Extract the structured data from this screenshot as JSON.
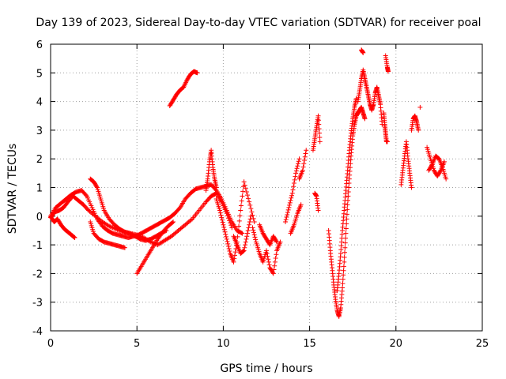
{
  "chart_data": {
    "type": "scatter",
    "title": "Day 139 of 2023, Sidereal Day-to-day VTEC variation (SDTVAR) for receiver poal",
    "xlabel": "GPS time / hours",
    "ylabel": "SDTVAR / TECUs",
    "xlim": [
      0,
      25
    ],
    "ylim": [
      -4,
      6
    ],
    "xticks": [
      0,
      5,
      10,
      15,
      20,
      25
    ],
    "yticks": [
      -4,
      -3,
      -2,
      -1,
      0,
      1,
      2,
      3,
      4,
      5,
      6
    ],
    "grid": true,
    "legend": "none",
    "marker": "+",
    "series": [
      {
        "name": "SDTVAR",
        "color": "#ff0000",
        "segments": [
          {
            "x": [
              0.0,
              0.3,
              0.6,
              0.9,
              1.2,
              1.5,
              1.8,
              2.1,
              2.4,
              2.7,
              3.0,
              3.3,
              3.6,
              3.9,
              4.2,
              4.5,
              4.8,
              5.1,
              5.4,
              5.7,
              6.0,
              6.3,
              6.6,
              6.9,
              7.2,
              7.5,
              7.8,
              8.1,
              8.4,
              8.7,
              9.0,
              9.3,
              9.6,
              9.9,
              10.2,
              10.5,
              10.8,
              11.1
            ],
            "y": [
              0.0,
              0.3,
              0.45,
              0.6,
              0.75,
              0.85,
              0.9,
              0.7,
              0.3,
              -0.1,
              -0.35,
              -0.5,
              -0.6,
              -0.65,
              -0.7,
              -0.75,
              -0.7,
              -0.65,
              -0.55,
              -0.45,
              -0.35,
              -0.25,
              -0.15,
              -0.05,
              0.1,
              0.3,
              0.6,
              0.8,
              0.95,
              1.0,
              1.05,
              1.1,
              0.9,
              0.6,
              0.2,
              -0.2,
              -0.5,
              -0.6
            ]
          },
          {
            "x": [
              0.0,
              0.25,
              0.5,
              0.75,
              1.0,
              1.3,
              1.6,
              1.9,
              2.2,
              2.6,
              3.0,
              3.4,
              3.8,
              4.2,
              4.6,
              5.0,
              5.4,
              5.8,
              6.2,
              6.6,
              7.0,
              7.4,
              7.8,
              8.2,
              8.6,
              9.0,
              9.3,
              9.6,
              9.9,
              10.2,
              10.5
            ],
            "y": [
              -0.05,
              0.15,
              0.2,
              0.3,
              0.5,
              0.7,
              0.55,
              0.4,
              0.2,
              0.0,
              -0.2,
              -0.35,
              -0.45,
              -0.55,
              -0.6,
              -0.65,
              -0.75,
              -0.9,
              -1.0,
              -0.85,
              -0.7,
              -0.5,
              -0.3,
              -0.1,
              0.2,
              0.5,
              0.7,
              0.8,
              0.5,
              0.1,
              -0.4
            ]
          },
          {
            "x": [
              0.0,
              0.2,
              0.4,
              0.6,
              0.8,
              1.0,
              1.2,
              1.4
            ],
            "y": [
              0.0,
              -0.2,
              -0.1,
              -0.3,
              -0.45,
              -0.55,
              -0.65,
              -0.75
            ]
          },
          {
            "x": [
              2.3,
              2.5,
              2.7,
              2.9,
              3.1,
              3.4,
              3.7,
              4.0,
              4.3,
              4.6,
              4.9,
              5.2,
              5.5,
              5.8,
              6.1,
              6.4,
              6.7
            ],
            "y": [
              1.3,
              1.2,
              1.0,
              0.6,
              0.2,
              -0.1,
              -0.3,
              -0.45,
              -0.55,
              -0.6,
              -0.7,
              -0.8,
              -0.85,
              -0.8,
              -0.7,
              -0.6,
              -0.5
            ]
          },
          {
            "x": [
              2.3,
              2.5,
              2.8,
              3.1,
              3.4,
              3.7,
              4.0,
              4.3
            ],
            "y": [
              -0.2,
              -0.6,
              -0.8,
              -0.9,
              -0.95,
              -1.0,
              -1.05,
              -1.1
            ]
          },
          {
            "x": [
              5.0,
              5.3,
              5.6,
              5.9,
              6.2,
              6.5,
              6.8,
              7.1
            ],
            "y": [
              -2.0,
              -1.7,
              -1.4,
              -1.1,
              -0.8,
              -0.55,
              -0.35,
              -0.2
            ]
          },
          {
            "x": [
              6.9,
              7.1,
              7.3,
              7.5,
              7.7,
              7.9,
              8.1,
              8.3,
              8.5
            ],
            "y": [
              3.85,
              4.05,
              4.25,
              4.4,
              4.5,
              4.75,
              4.95,
              5.05,
              5.0
            ]
          },
          {
            "x": [
              9.0,
              9.1,
              9.2,
              9.3,
              9.4,
              9.5,
              9.6
            ],
            "y": [
              0.9,
              1.3,
              1.9,
              2.3,
              1.7,
              1.3,
              1.0
            ]
          },
          {
            "x": [
              9.6,
              9.8,
              10.0,
              10.2,
              10.4,
              10.6,
              10.8,
              11.0,
              11.2,
              11.5,
              11.8
            ],
            "y": [
              0.6,
              0.2,
              -0.3,
              -0.8,
              -1.3,
              -1.6,
              -0.9,
              0.2,
              1.2,
              0.5,
              -0.2
            ]
          },
          {
            "x": [
              10.6,
              10.8,
              11.0,
              11.2,
              11.4,
              11.6
            ],
            "y": [
              -0.7,
              -1.0,
              -1.3,
              -1.2,
              -0.6,
              0.0
            ]
          },
          {
            "x": [
              11.7,
              11.9,
              12.1,
              12.3,
              12.5,
              12.7,
              12.9,
              13.1,
              13.3
            ],
            "y": [
              -0.4,
              -0.9,
              -1.3,
              -1.6,
              -1.2,
              -1.8,
              -2.0,
              -1.2,
              -0.9
            ]
          },
          {
            "x": [
              12.1,
              12.3,
              12.5,
              12.7,
              12.9,
              13.1
            ],
            "y": [
              -0.3,
              -0.6,
              -0.8,
              -1.0,
              -0.7,
              -0.9
            ]
          },
          {
            "x": [
              13.6,
              13.8,
              14.0,
              14.2,
              14.4
            ],
            "y": [
              -0.2,
              0.3,
              0.8,
              1.5,
              2.0
            ]
          },
          {
            "x": [
              14.4,
              14.6,
              14.8
            ],
            "y": [
              1.3,
              1.6,
              2.3
            ]
          },
          {
            "x": [
              13.9,
              14.1,
              14.3,
              14.5
            ],
            "y": [
              -0.6,
              -0.3,
              0.1,
              0.4
            ]
          },
          {
            "x": [
              15.2,
              15.3,
              15.4,
              15.5,
              15.6
            ],
            "y": [
              2.3,
              2.7,
              3.1,
              3.5,
              2.6
            ]
          },
          {
            "x": [
              15.3,
              15.4,
              15.5
            ],
            "y": [
              0.8,
              0.7,
              0.2
            ]
          },
          {
            "x": [
              16.1,
              16.2,
              16.3,
              16.4,
              16.5,
              16.6,
              16.7,
              16.8,
              16.9,
              17.0,
              17.1,
              17.2,
              17.3,
              17.4,
              17.5,
              17.6,
              17.7,
              17.8,
              17.9,
              18.0,
              18.1,
              18.2
            ],
            "y": [
              -0.5,
              -1.2,
              -1.8,
              -2.4,
              -2.9,
              -3.3,
              -3.5,
              -3.2,
              -2.5,
              -1.6,
              -0.6,
              0.4,
              1.3,
              2.1,
              2.8,
              3.2,
              3.5,
              3.6,
              3.7,
              3.8,
              3.6,
              3.4
            ]
          },
          {
            "x": [
              16.6,
              16.7,
              16.8,
              16.9,
              17.0,
              17.1,
              17.2,
              17.3,
              17.4,
              17.5,
              17.6,
              17.7
            ],
            "y": [
              -2.6,
              -2.0,
              -1.3,
              -0.5,
              0.2,
              0.9,
              1.6,
              2.3,
              2.9,
              3.4,
              3.8,
              4.1
            ]
          },
          {
            "x": [
              17.8,
              17.9,
              18.0,
              18.1,
              18.2,
              18.3,
              18.4,
              18.5,
              18.6,
              18.7,
              18.8,
              18.9,
              19.0,
              19.1,
              19.2
            ],
            "y": [
              4.0,
              4.4,
              4.8,
              5.1,
              4.8,
              4.5,
              4.2,
              3.9,
              3.7,
              3.9,
              4.3,
              4.5,
              4.2,
              3.9,
              3.2
            ]
          },
          {
            "x": [
              18.0,
              18.1
            ],
            "y": [
              5.8,
              5.7
            ]
          },
          {
            "x": [
              19.3,
              19.35,
              19.4,
              19.45,
              19.5
            ],
            "y": [
              3.6,
              3.2,
              2.9,
              2.6,
              2.6
            ]
          },
          {
            "x": [
              19.4,
              19.5,
              19.55
            ],
            "y": [
              5.6,
              5.2,
              5.05
            ]
          },
          {
            "x": [
              20.3,
              20.4,
              20.5,
              20.6,
              20.7,
              20.8,
              20.9
            ],
            "y": [
              1.1,
              1.6,
              2.1,
              2.6,
              2.0,
              1.5,
              1.0
            ]
          },
          {
            "x": [
              20.9,
              21.0,
              21.1,
              21.2,
              21.3
            ],
            "y": [
              3.0,
              3.4,
              3.5,
              3.3,
              3.0
            ]
          },
          {
            "x": [
              21.4
            ],
            "y": [
              3.8
            ]
          },
          {
            "x": [
              21.8,
              22.0,
              22.2,
              22.4,
              22.6,
              22.8
            ],
            "y": [
              2.4,
              2.0,
              1.6,
              1.4,
              1.6,
              1.9
            ]
          },
          {
            "x": [
              21.9,
              22.1,
              22.3,
              22.5,
              22.7,
              22.9
            ],
            "y": [
              1.6,
              1.8,
              2.1,
              2.0,
              1.7,
              1.3
            ]
          }
        ]
      }
    ]
  }
}
